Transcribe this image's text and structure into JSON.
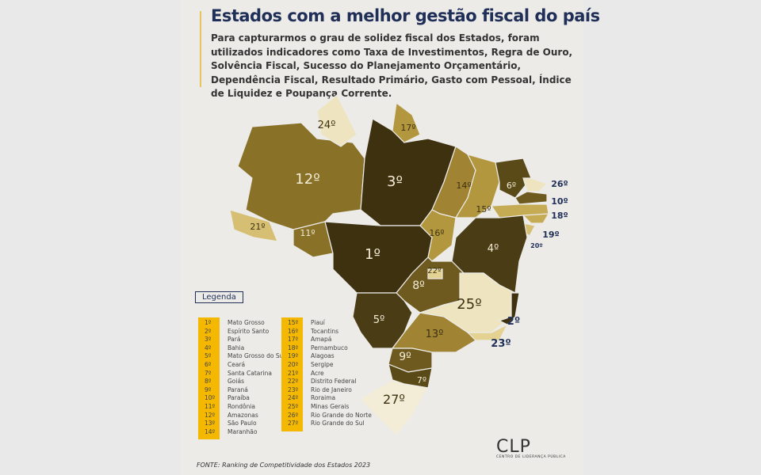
{
  "header": {
    "title": "Estados com a melhor gestão fiscal do país",
    "subtitle": "Para capturarmos o grau de solidez fiscal dos Estados, foram utilizados indicadores como Taxa de Investimentos, Regra de Ouro, Solvência Fiscal, Sucesso do Planejamento Orçamentário, Dependência Fiscal, Resultado Primário, Gasto com Pessoal, Índice de Liquidez e Poupança Corrente."
  },
  "colors": {
    "accent": "#f5b800",
    "title": "#1f2f57",
    "rank_dark": "#3d3110",
    "rank_light": "#f0e6c6"
  },
  "map": {
    "states": [
      {
        "id": "AM",
        "rank": "12º"
      },
      {
        "id": "RR",
        "rank": "24º"
      },
      {
        "id": "PA",
        "rank": "3º"
      },
      {
        "id": "AP",
        "rank": "17º"
      },
      {
        "id": "AC",
        "rank": "21º"
      },
      {
        "id": "RO",
        "rank": "11º"
      },
      {
        "id": "MT",
        "rank": "1º"
      },
      {
        "id": "MA",
        "rank": "14º"
      },
      {
        "id": "TO",
        "rank": "16º"
      },
      {
        "id": "PI",
        "rank": "15º"
      },
      {
        "id": "CE",
        "rank": "6º"
      },
      {
        "id": "RN",
        "rank": "26º"
      },
      {
        "id": "PB",
        "rank": "10º"
      },
      {
        "id": "PE",
        "rank": "18º"
      },
      {
        "id": "AL",
        "rank": "19º"
      },
      {
        "id": "SE",
        "rank": "20º"
      },
      {
        "id": "BA",
        "rank": "4º"
      },
      {
        "id": "GO",
        "rank": "8º"
      },
      {
        "id": "DF",
        "rank": "22º"
      },
      {
        "id": "MG",
        "rank": "25º"
      },
      {
        "id": "ES",
        "rank": "2º"
      },
      {
        "id": "RJ",
        "rank": "23º"
      },
      {
        "id": "MS",
        "rank": "5º"
      },
      {
        "id": "SP",
        "rank": "13º"
      },
      {
        "id": "PR",
        "rank": "9º"
      },
      {
        "id": "SC",
        "rank": "7º"
      },
      {
        "id": "RS",
        "rank": "27º"
      }
    ]
  },
  "legend": {
    "title": "Legenda",
    "col1": [
      {
        "rank": "1º",
        "name": "Mato Grosso"
      },
      {
        "rank": "2º",
        "name": "Espírito Santo"
      },
      {
        "rank": "3º",
        "name": "Pará"
      },
      {
        "rank": "4º",
        "name": "Bahia"
      },
      {
        "rank": "5º",
        "name": "Mato Grosso do Sul"
      },
      {
        "rank": "6º",
        "name": "Ceará"
      },
      {
        "rank": "7º",
        "name": "Santa Catarina"
      },
      {
        "rank": "8º",
        "name": "Goiás"
      },
      {
        "rank": "9º",
        "name": "Paraná"
      },
      {
        "rank": "10º",
        "name": "Paraíba"
      },
      {
        "rank": "11º",
        "name": "Rondônia"
      },
      {
        "rank": "12º",
        "name": "Amazonas"
      },
      {
        "rank": "13º",
        "name": "São Paulo"
      },
      {
        "rank": "14º",
        "name": "Maranhão"
      }
    ],
    "col2": [
      {
        "rank": "15º",
        "name": "Piauí"
      },
      {
        "rank": "16º",
        "name": "Tocantins"
      },
      {
        "rank": "17º",
        "name": "Amapá"
      },
      {
        "rank": "18º",
        "name": "Pernambuco"
      },
      {
        "rank": "19º",
        "name": "Alagoas"
      },
      {
        "rank": "20º",
        "name": "Sergipe"
      },
      {
        "rank": "21º",
        "name": "Acre"
      },
      {
        "rank": "22º",
        "name": "Distrito Federal"
      },
      {
        "rank": "23º",
        "name": "Rio de Janeiro"
      },
      {
        "rank": "24º",
        "name": "Roraima"
      },
      {
        "rank": "25º",
        "name": "Minas Gerais"
      },
      {
        "rank": "26º",
        "name": "Rio Grande do Norte"
      },
      {
        "rank": "27º",
        "name": "Rio Grande do Sul"
      }
    ]
  },
  "source": "FONTE: Ranking de Competitividade dos Estados 2023",
  "logo": {
    "name": "CLP",
    "tagline": "CENTRO DE LIDERANÇA PÚBLICA"
  }
}
